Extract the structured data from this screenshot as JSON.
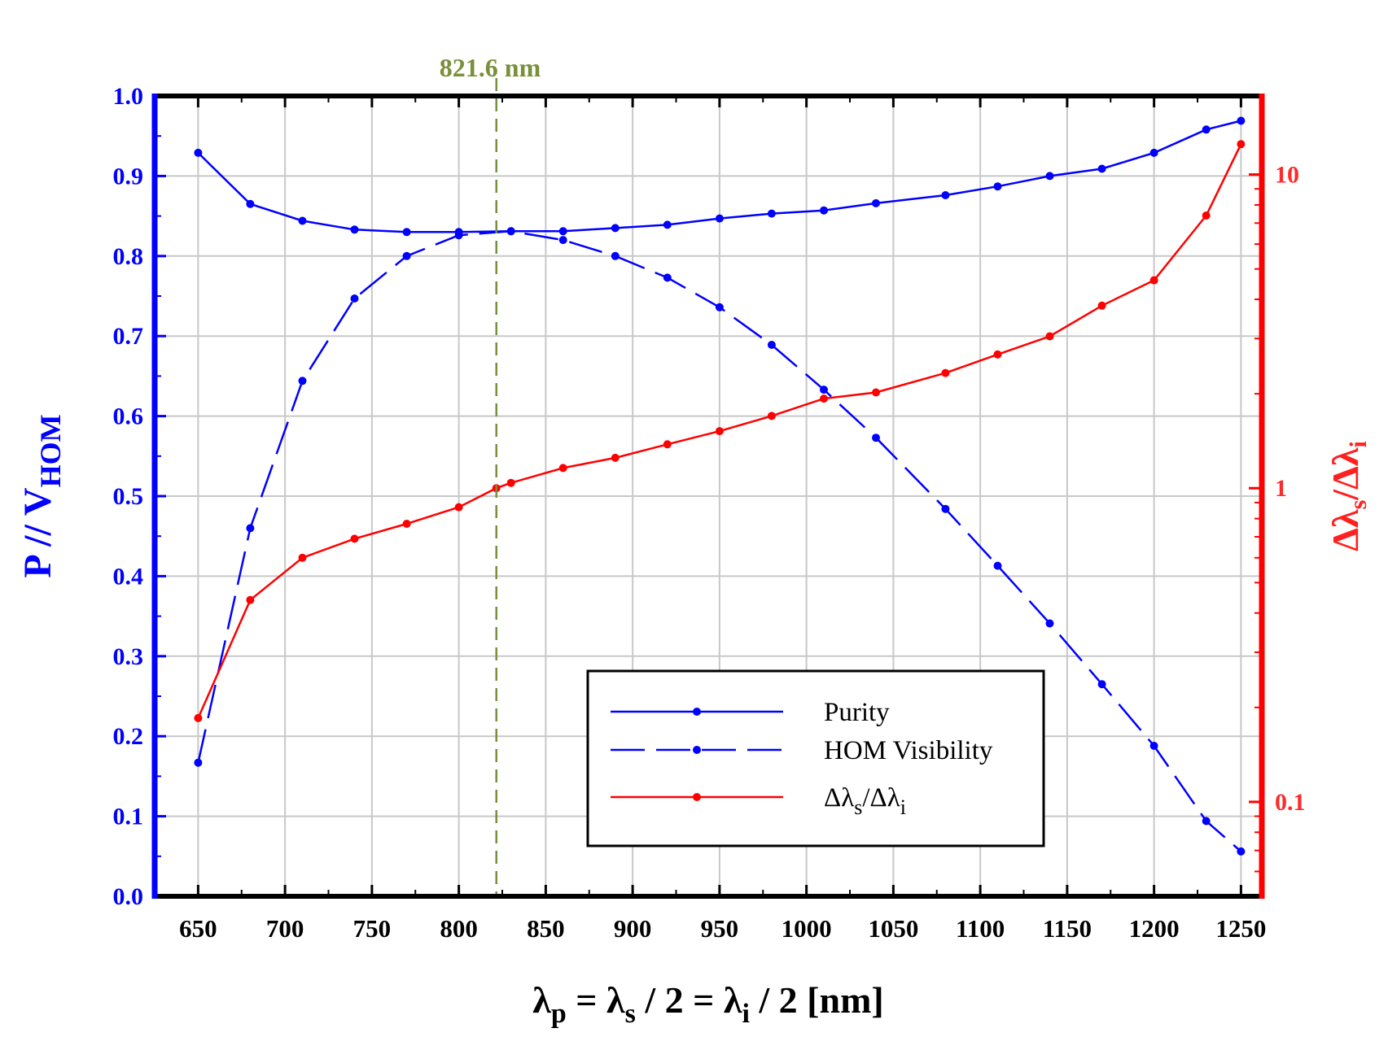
{
  "chart_data": {
    "type": "line",
    "marker_label": "821.6 nm",
    "marker_x": 821.6,
    "xlabel": {
      "main": "λ",
      "sub1": "p",
      "eq1": " = λ",
      "sub2": "s",
      "eq2": " / 2 = λ",
      "sub3": "i",
      "tail": " / 2 [nm]"
    },
    "ylabel_left": {
      "main": "P // V",
      "sub": "HOM"
    },
    "ylabel_right": {
      "a": "Δλ",
      "sub1": "s",
      "b": "/Δλ",
      "sub2": "i"
    },
    "x_ticks": [
      "650",
      "700",
      "750",
      "800",
      "850",
      "900",
      "950",
      "1000",
      "1050",
      "1100",
      "1150",
      "1200",
      "1250"
    ],
    "x_tick_values": [
      650,
      700,
      750,
      800,
      850,
      900,
      950,
      1000,
      1050,
      1100,
      1150,
      1200,
      1250
    ],
    "xlim": [
      625,
      1262
    ],
    "y_left_ticks": [
      "0.0",
      "0.1",
      "0.2",
      "0.3",
      "0.4",
      "0.5",
      "0.6",
      "0.7",
      "0.8",
      "0.9",
      "1.0"
    ],
    "y_left_tick_values": [
      0,
      0.1,
      0.2,
      0.3,
      0.4,
      0.5,
      0.6,
      0.7,
      0.8,
      0.9,
      1.0
    ],
    "ylim_left": [
      0,
      1
    ],
    "y_right_scale": "log",
    "y_right_ticks": [
      "0.1",
      "1",
      "10"
    ],
    "y_right_tick_values": [
      0.1,
      1,
      10
    ],
    "ylim_right": [
      0.05,
      17.8
    ],
    "grid": true,
    "legend_position": "bottom-right",
    "colors": {
      "purity": "#0000ff",
      "hom": "#0000ff",
      "ratio": "#ff0000",
      "marker": "#7a8f3a",
      "left_axis": "#0000ff",
      "right_axis": "#ff0000"
    },
    "series": [
      {
        "name": "Purity",
        "axis": "left",
        "style": "solid",
        "color": "#0000ff",
        "x": [
          650,
          680,
          710,
          740,
          770,
          800,
          830,
          860,
          890,
          920,
          950,
          980,
          1010,
          1040,
          1080,
          1110,
          1140,
          1170,
          1200,
          1230,
          1250
        ],
        "y": [
          0.929,
          0.865,
          0.844,
          0.833,
          0.83,
          0.83,
          0.831,
          0.831,
          0.835,
          0.839,
          0.847,
          0.853,
          0.857,
          0.866,
          0.876,
          0.887,
          0.9,
          0.909,
          0.929,
          0.958,
          0.969
        ]
      },
      {
        "name": "HOM Visibility",
        "axis": "left",
        "style": "dashed",
        "color": "#0000ff",
        "x": [
          650,
          680,
          710,
          740,
          770,
          800,
          830,
          860,
          890,
          920,
          950,
          980,
          1010,
          1040,
          1080,
          1110,
          1140,
          1170,
          1200,
          1230,
          1250
        ],
        "y": [
          0.167,
          0.46,
          0.644,
          0.747,
          0.8,
          0.826,
          0.831,
          0.82,
          0.8,
          0.773,
          0.736,
          0.689,
          0.633,
          0.573,
          0.484,
          0.413,
          0.341,
          0.265,
          0.188,
          0.094,
          0.056
        ]
      },
      {
        "name": "Δλs/Δλi",
        "name_parts": {
          "a": "Δλ",
          "sub1": "s",
          "b": "/Δλ",
          "sub2": "i"
        },
        "axis": "right",
        "style": "solid",
        "color": "#ff0000",
        "x": [
          650,
          680,
          710,
          740,
          770,
          800,
          821.6,
          830,
          860,
          890,
          920,
          950,
          980,
          1010,
          1040,
          1080,
          1110,
          1140,
          1170,
          1200,
          1230,
          1250
        ],
        "y": [
          0.185,
          0.44,
          0.6,
          0.69,
          0.77,
          0.87,
          1.0,
          1.04,
          1.16,
          1.25,
          1.38,
          1.52,
          1.7,
          1.93,
          2.02,
          2.33,
          2.67,
          3.05,
          3.82,
          4.6,
          7.4,
          12.5
        ]
      }
    ]
  }
}
